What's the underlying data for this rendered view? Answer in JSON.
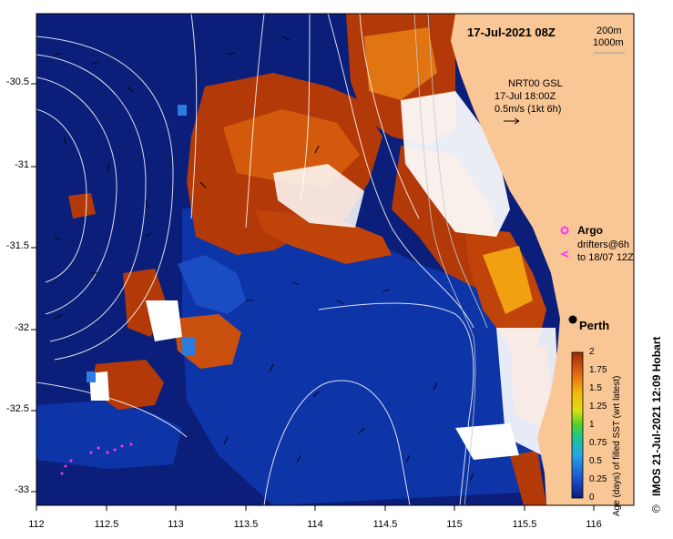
{
  "map": {
    "date_label": "17-Jul-2021 08Z",
    "isobath_200": "200m",
    "isobath_1000": "1000m",
    "current_source": "NRT00 GSL",
    "current_time": "17-Jul 18:00Z",
    "scale_arrow": "0.5m/s (1kt 6h)",
    "argo_label": "Argo",
    "drifters_line1": "drifters@6h",
    "drifters_line2": "to 18/07 12Z",
    "city_label": "Perth",
    "credit": "IMOS 21-Jul-2021 12:09 Hobart",
    "copyright_symbol": "©",
    "colorbar_label": "Age (days) of filled SST (wrt latest)",
    "colors": {
      "land": "#f9c695",
      "ocean_deep": "#0b1f7a",
      "ocean_mid": "#0d35a8",
      "age_brown": "#b33a08",
      "age_orange": "#e07512",
      "no_data": "#ffffff",
      "argo": "#ff33ff"
    }
  },
  "axes": {
    "x_ticks": [
      "112",
      "112.5",
      "113",
      "113.5",
      "114",
      "114.5",
      "115",
      "115.5",
      "116"
    ],
    "y_ticks": [
      "-30.5",
      "-31",
      "-31.5",
      "-32",
      "-32.5",
      "-33"
    ]
  },
  "colorbar": {
    "ticks": [
      "2",
      "1.75",
      "1.5",
      "1.25",
      "1",
      "0.75",
      "0.5",
      "0.25",
      "0"
    ],
    "min": 0,
    "max": 2
  }
}
